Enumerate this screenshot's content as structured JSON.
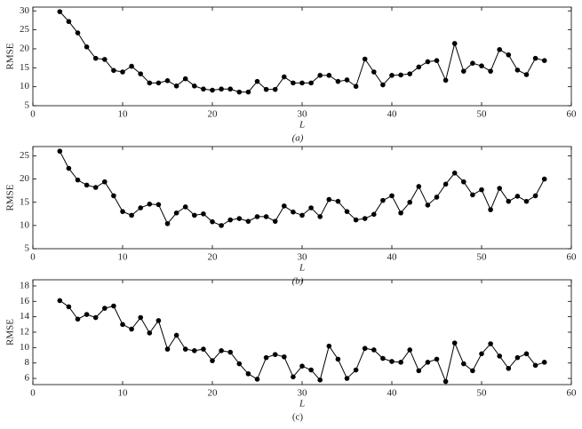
{
  "chart_data": [
    {
      "type": "line",
      "xlabel": "L",
      "ylabel": "RMSE",
      "caption": "(a)",
      "color": "#000000",
      "x": [
        3,
        4,
        5,
        6,
        7,
        8,
        9,
        10,
        11,
        12,
        13,
        14,
        15,
        16,
        17,
        18,
        19,
        20,
        21,
        22,
        23,
        24,
        25,
        26,
        27,
        28,
        29,
        30,
        31,
        32,
        33,
        34,
        35,
        36,
        37,
        38,
        39,
        40,
        41,
        42,
        43,
        44,
        45,
        46,
        47,
        48,
        49,
        50,
        51,
        52,
        53,
        54,
        55,
        56,
        57
      ],
      "values": [
        29.8,
        27.2,
        24.2,
        20.5,
        17.5,
        17.2,
        14.3,
        13.9,
        15.4,
        13.4,
        11.0,
        11.0,
        11.6,
        10.2,
        12.1,
        10.2,
        9.4,
        9.1,
        9.4,
        9.4,
        8.6,
        8.6,
        11.4,
        9.3,
        9.3,
        12.6,
        11.0,
        11.0,
        11.0,
        13.0,
        13.0,
        11.4,
        11.8,
        10.1,
        17.3,
        13.9,
        10.5,
        13.0,
        13.1,
        13.4,
        15.2,
        16.6,
        16.9,
        11.7,
        21.4,
        14.1,
        16.2,
        15.5,
        14.1,
        19.8,
        18.4,
        14.4,
        13.2,
        17.5,
        16.9
      ],
      "xlim": [
        0,
        60
      ],
      "xticks": [
        0,
        10,
        20,
        30,
        40,
        50,
        60
      ],
      "ylim": [
        5,
        31
      ],
      "yticks": [
        5,
        10,
        15,
        20,
        25,
        30
      ]
    },
    {
      "type": "line",
      "xlabel": "L",
      "ylabel": "RMSE",
      "caption": "(b)",
      "color": "#000000",
      "x": [
        3,
        4,
        5,
        6,
        7,
        8,
        9,
        10,
        11,
        12,
        13,
        14,
        15,
        16,
        17,
        18,
        19,
        20,
        21,
        22,
        23,
        24,
        25,
        26,
        27,
        28,
        29,
        30,
        31,
        32,
        33,
        34,
        35,
        36,
        37,
        38,
        39,
        40,
        41,
        42,
        43,
        44,
        45,
        46,
        47,
        48,
        49,
        50,
        51,
        52,
        53,
        54,
        55,
        56,
        57
      ],
      "values": [
        26.0,
        22.3,
        19.8,
        18.7,
        18.2,
        19.4,
        16.4,
        13.0,
        12.2,
        13.8,
        14.6,
        14.5,
        10.4,
        12.7,
        14.0,
        12.2,
        12.5,
        10.8,
        10.0,
        11.2,
        11.5,
        10.9,
        11.9,
        11.9,
        10.9,
        14.2,
        12.9,
        12.2,
        13.8,
        11.9,
        15.6,
        15.2,
        13.0,
        11.2,
        11.5,
        12.4,
        15.4,
        16.4,
        12.7,
        15.0,
        18.4,
        14.4,
        16.1,
        18.9,
        21.3,
        19.4,
        16.6,
        17.7,
        13.4,
        18.0,
        15.2,
        16.3,
        15.2,
        16.4,
        20.0
      ],
      "xlim": [
        0,
        60
      ],
      "xticks": [
        0,
        10,
        20,
        30,
        40,
        50,
        60
      ],
      "ylim": [
        5,
        27
      ],
      "yticks": [
        5,
        10,
        15,
        20,
        25
      ]
    },
    {
      "type": "line",
      "xlabel": "L",
      "ylabel": "RMSE",
      "caption": "(c)",
      "color": "#000000",
      "x": [
        3,
        4,
        5,
        6,
        7,
        8,
        9,
        10,
        11,
        12,
        13,
        14,
        15,
        16,
        17,
        18,
        19,
        20,
        21,
        22,
        23,
        24,
        25,
        26,
        27,
        28,
        29,
        30,
        31,
        32,
        33,
        34,
        35,
        36,
        37,
        38,
        39,
        40,
        41,
        42,
        43,
        44,
        45,
        46,
        47,
        48,
        49,
        50,
        51,
        52,
        53,
        54,
        55,
        56,
        57
      ],
      "values": [
        16.1,
        15.3,
        13.7,
        14.3,
        13.9,
        15.1,
        15.4,
        13.0,
        12.4,
        13.9,
        11.9,
        13.5,
        9.8,
        11.6,
        9.8,
        9.6,
        9.8,
        8.3,
        9.6,
        9.4,
        7.9,
        6.6,
        5.9,
        8.7,
        9.1,
        8.8,
        6.2,
        7.6,
        7.1,
        5.8,
        10.2,
        8.5,
        6.0,
        7.1,
        9.9,
        9.7,
        8.6,
        8.2,
        8.1,
        9.7,
        7.0,
        8.1,
        8.5,
        5.6,
        10.6,
        7.9,
        7.0,
        9.2,
        10.5,
        8.9,
        7.3,
        8.7,
        9.2,
        7.7,
        8.1
      ],
      "xlim": [
        0,
        60
      ],
      "xticks": [
        0,
        10,
        20,
        30,
        40,
        50,
        60
      ],
      "ylim": [
        5.2,
        18.8
      ],
      "yticks": [
        6,
        8,
        10,
        12,
        14,
        16,
        18
      ]
    }
  ]
}
